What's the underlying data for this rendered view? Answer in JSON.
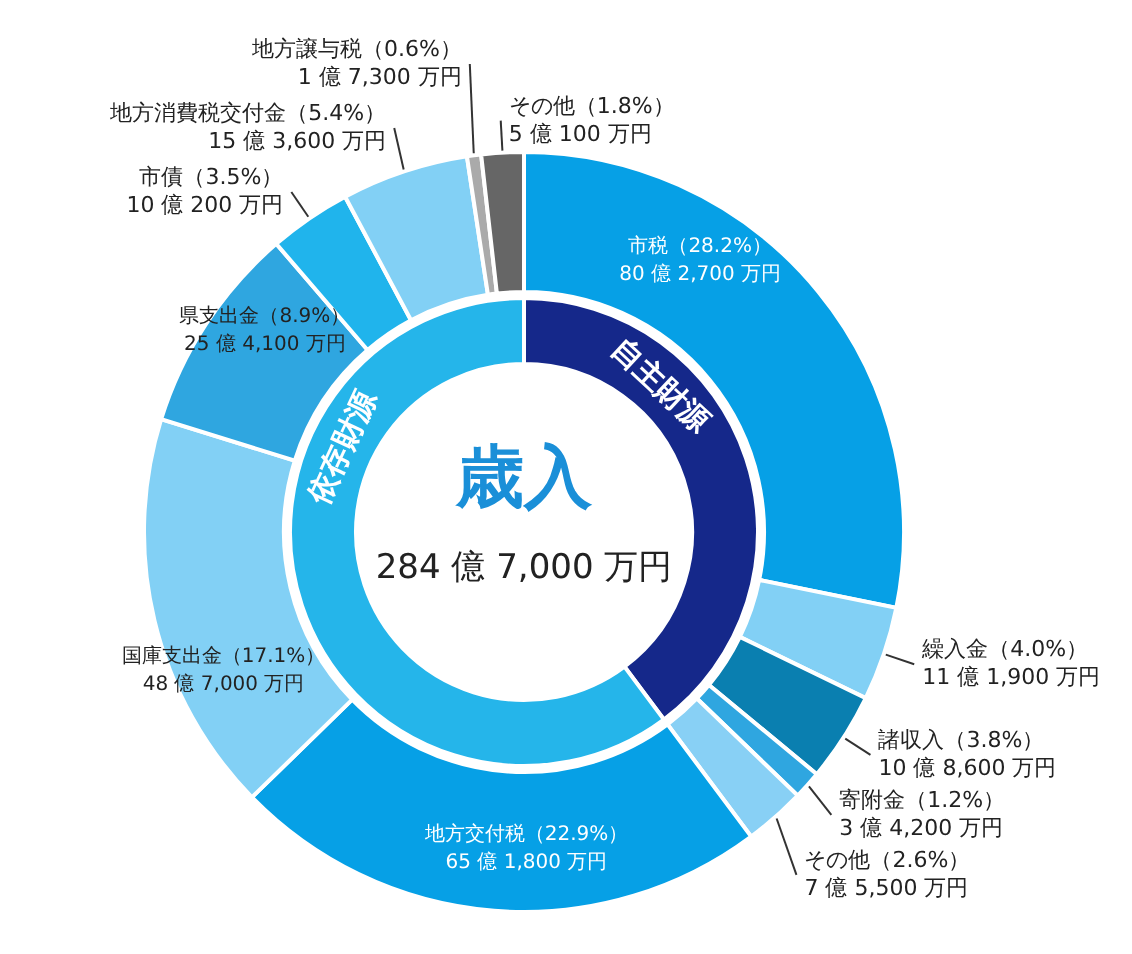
{
  "chart_data": [
    {
      "type": "donut",
      "title": "歳入",
      "subtitle": "284 億 7,000 万円",
      "categories": [
        "市税",
        "繰入金",
        "諸収入",
        "寄附金",
        "その他",
        "地方交付税",
        "国庫支出金",
        "県支出金",
        "市債",
        "地方消費税交付金",
        "地方譲与税",
        "その他"
      ],
      "values": [
        28.2,
        4.0,
        3.8,
        1.2,
        2.6,
        22.9,
        17.1,
        8.9,
        3.5,
        5.4,
        0.6,
        1.8
      ],
      "value_labels": [
        "（28.2%）\n80 億 2,700 万円",
        "（4.0%）\n11 億 1,900 万円",
        "（3.8%）\n10 億 8,600 万円",
        "（1.2%）\n3 億 4,200 万円",
        "（2.6%）\n7 億 5,500 万円",
        "（22.9%）\n65 億 1,800 万円",
        "（17.1%）\n48 億 7,000 万円",
        "（8.9%）\n25 億 4,100 万円",
        "（3.5%）\n10 億 200 万円",
        "（5.4%）\n15 億 3,600 万円",
        "（0.6%）\n1 億 7,300 万円",
        "（1.8%）\n5 億 100 万円"
      ],
      "colors": [
        "#06a0e6",
        "#82d0f5",
        "#0a7fb0",
        "#2fa6e0",
        "#88d0f5",
        "#06a0e6",
        "#82d0f5",
        "#2fa6e0",
        "#20b4ec",
        "#82d0f5",
        "#aaaaaa",
        "#666666"
      ]
    },
    {
      "type": "donut",
      "categories": [
        "自主財源",
        "依存財源"
      ],
      "values": [
        39.8,
        60.2
      ],
      "colors": [
        "#15288a",
        "#25b5ea"
      ]
    }
  ]
}
